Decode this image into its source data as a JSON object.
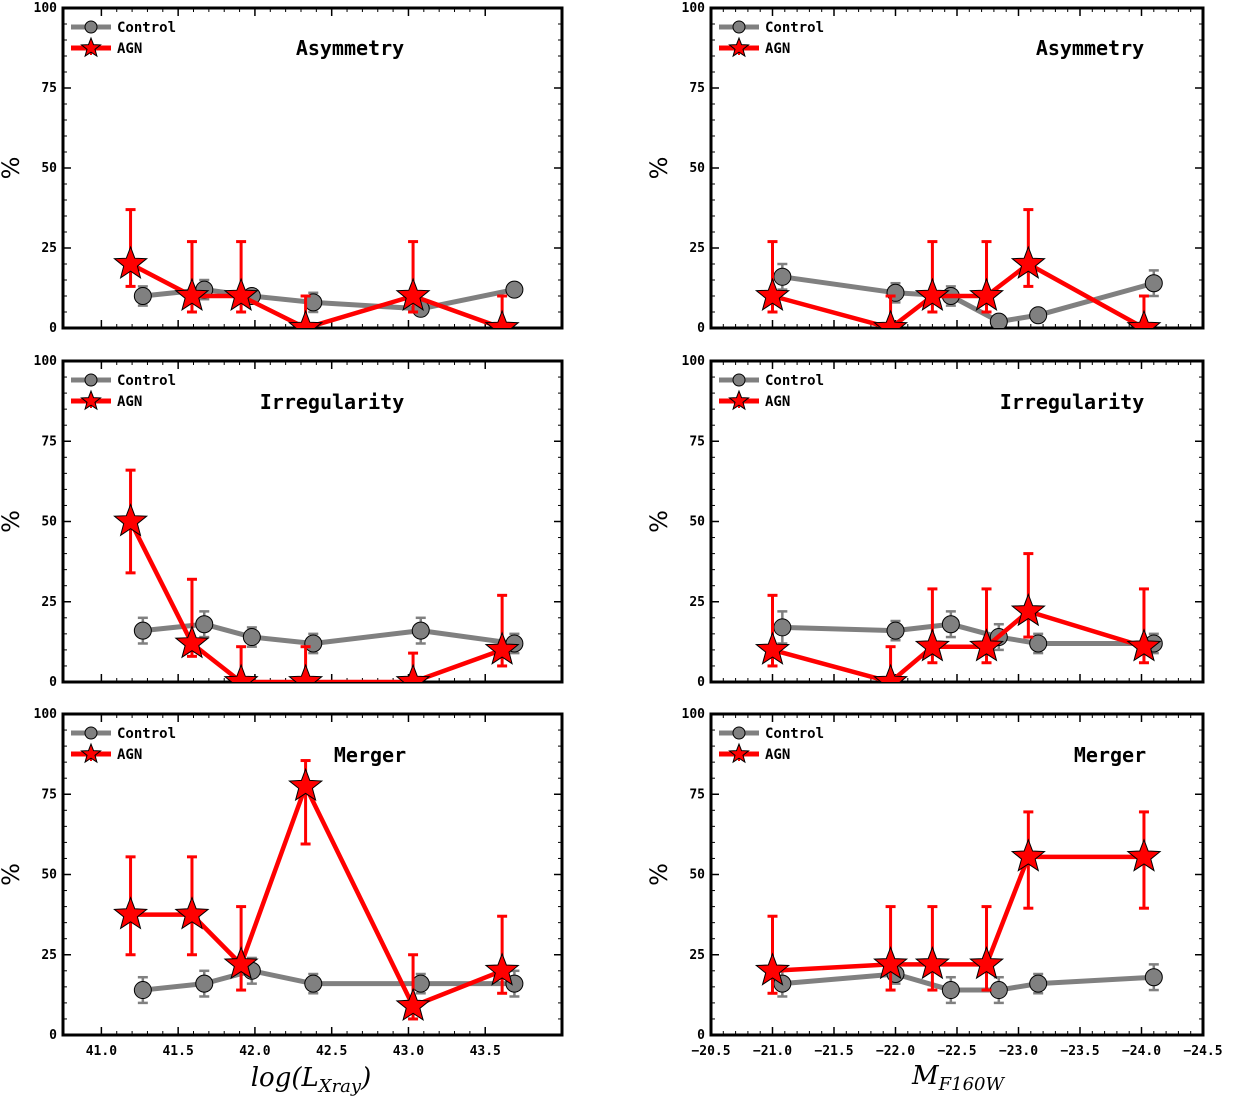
{
  "figure": {
    "colors": {
      "control": "#808080",
      "agn": "#ff0000",
      "marker_edge": "#000000"
    },
    "legend": {
      "placement": "top-left",
      "control_label": "Control",
      "agn_label": "AGN"
    },
    "ylabel": "%",
    "xlabels": {
      "left": {
        "main": "log(L",
        "sub": "Xray",
        "close": ")"
      },
      "right": {
        "main": "M",
        "sub": "F160W"
      }
    }
  },
  "chart_data": [
    {
      "type": "line",
      "title": "Asymmetry",
      "panel": "top-left",
      "xlim": [
        40.75,
        44.0
      ],
      "ylim": [
        0,
        100
      ],
      "xticks": [
        41.0,
        41.5,
        42.0,
        42.5,
        43.0,
        43.5
      ],
      "yticks": [
        0,
        25,
        50,
        75,
        100
      ],
      "xtick_labels": [
        "41.0",
        "41.5",
        "42.0",
        "42.5",
        "43.0",
        "43.5"
      ],
      "show_xticklabels": false,
      "ytick_labels": [
        "0",
        "25",
        "50",
        "75",
        "100"
      ],
      "series": [
        {
          "name": "Control",
          "x": [
            41.27,
            41.67,
            41.98,
            42.38,
            43.08,
            43.69
          ],
          "y": [
            10,
            12,
            10,
            8,
            6,
            12
          ],
          "err": [
            3,
            3,
            2,
            3,
            2,
            2
          ]
        },
        {
          "name": "AGN",
          "x": [
            41.19,
            41.59,
            41.91,
            42.33,
            43.03,
            43.61
          ],
          "y": [
            20,
            10,
            10,
            0,
            10,
            0
          ],
          "err": [
            [
              7,
              17
            ],
            [
              5,
              17
            ],
            [
              5,
              17
            ],
            [
              0,
              10
            ],
            [
              5,
              17
            ],
            [
              0,
              10
            ]
          ]
        }
      ]
    },
    {
      "type": "line",
      "title": "Asymmetry",
      "panel": "top-right",
      "xlim": [
        -20.5,
        -24.5
      ],
      "ylim": [
        0,
        100
      ],
      "xticks": [
        -20.5,
        -21.0,
        -21.5,
        -22.0,
        -22.5,
        -23.0,
        -23.5,
        -24.0,
        -24.5
      ],
      "yticks": [
        0,
        25,
        50,
        75,
        100
      ],
      "xtick_labels": [
        "−20.5",
        "−21.0",
        "−21.5",
        "−22.0",
        "−22.5",
        "−23.0",
        "−23.5",
        "−24.0",
        "−24.5"
      ],
      "show_xticklabels": false,
      "ytick_labels": [
        "0",
        "25",
        "50",
        "75",
        "100"
      ],
      "series": [
        {
          "name": "Control",
          "x": [
            -21.08,
            -22.0,
            -22.45,
            -22.84,
            -23.16,
            -24.1
          ],
          "y": [
            16,
            11,
            10,
            2,
            4,
            14
          ],
          "err": [
            4,
            3,
            3,
            1,
            1,
            4
          ]
        },
        {
          "name": "AGN",
          "x": [
            -21.0,
            -21.96,
            -22.3,
            -22.74,
            -23.08,
            -24.02
          ],
          "y": [
            10,
            0,
            10,
            10,
            20,
            0
          ],
          "err": [
            [
              5,
              17
            ],
            [
              0,
              10
            ],
            [
              5,
              17
            ],
            [
              5,
              17
            ],
            [
              7,
              17
            ],
            [
              0,
              10
            ]
          ]
        }
      ]
    },
    {
      "type": "line",
      "title": "Irregularity",
      "panel": "middle-left",
      "xlim": [
        40.75,
        44.0
      ],
      "ylim": [
        0,
        100
      ],
      "xticks": [
        41.0,
        41.5,
        42.0,
        42.5,
        43.0,
        43.5
      ],
      "yticks": [
        0,
        25,
        50,
        75,
        100
      ],
      "xtick_labels": [
        "41.0",
        "41.5",
        "42.0",
        "42.5",
        "43.0",
        "43.5"
      ],
      "show_xticklabels": false,
      "ytick_labels": [
        "0",
        "25",
        "50",
        "75",
        "100"
      ],
      "series": [
        {
          "name": "Control",
          "x": [
            41.27,
            41.67,
            41.98,
            42.38,
            43.08,
            43.69
          ],
          "y": [
            16,
            18,
            14,
            12,
            16,
            12
          ],
          "err": [
            4,
            4,
            3,
            3,
            4,
            3
          ]
        },
        {
          "name": "AGN",
          "x": [
            41.19,
            41.59,
            41.91,
            42.33,
            43.03,
            43.61
          ],
          "y": [
            50,
            12,
            0,
            0,
            0,
            10
          ],
          "err": [
            [
              16,
              16
            ],
            [
              4,
              20
            ],
            [
              0,
              11
            ],
            [
              0,
              11
            ],
            [
              0,
              9
            ],
            [
              5,
              17
            ]
          ]
        }
      ]
    },
    {
      "type": "line",
      "title": "Irregularity",
      "panel": "middle-right",
      "xlim": [
        -20.5,
        -24.5
      ],
      "ylim": [
        0,
        100
      ],
      "xticks": [
        -20.5,
        -21.0,
        -21.5,
        -22.0,
        -22.5,
        -23.0,
        -23.5,
        -24.0,
        -24.5
      ],
      "yticks": [
        0,
        25,
        50,
        75,
        100
      ],
      "xtick_labels": [
        "−20.5",
        "−21.0",
        "−21.5",
        "−22.0",
        "−22.5",
        "−23.0",
        "−23.5",
        "−24.0",
        "−24.5"
      ],
      "show_xticklabels": false,
      "ytick_labels": [
        "0",
        "25",
        "50",
        "75",
        "100"
      ],
      "series": [
        {
          "name": "Control",
          "x": [
            -21.08,
            -22.0,
            -22.45,
            -22.84,
            -23.16,
            -24.1
          ],
          "y": [
            17,
            16,
            18,
            14,
            12,
            12
          ],
          "err": [
            5,
            3,
            4,
            4,
            3,
            3
          ]
        },
        {
          "name": "AGN",
          "x": [
            -21.0,
            -21.96,
            -22.3,
            -22.74,
            -23.08,
            -24.02
          ],
          "y": [
            10,
            0,
            11,
            11,
            22,
            11
          ],
          "err": [
            [
              5,
              17
            ],
            [
              0,
              11
            ],
            [
              5,
              18
            ],
            [
              5,
              18
            ],
            [
              8,
              18
            ],
            [
              5,
              18
            ]
          ]
        }
      ]
    },
    {
      "type": "line",
      "title": "Merger",
      "panel": "bottom-left",
      "xlim": [
        40.75,
        44.0
      ],
      "ylim": [
        0,
        100
      ],
      "xticks": [
        41.0,
        41.5,
        42.0,
        42.5,
        43.0,
        43.5
      ],
      "yticks": [
        0,
        25,
        50,
        75,
        100
      ],
      "xtick_labels": [
        "41.0",
        "41.5",
        "42.0",
        "42.5",
        "43.0",
        "43.5"
      ],
      "show_xticklabels": true,
      "ytick_labels": [
        "0",
        "25",
        "50",
        "75",
        "100"
      ],
      "series": [
        {
          "name": "Control",
          "x": [
            41.27,
            41.67,
            41.98,
            42.38,
            43.08,
            43.69
          ],
          "y": [
            14,
            16,
            20,
            16,
            16,
            16
          ],
          "err": [
            4,
            4,
            4,
            3,
            3,
            4
          ]
        },
        {
          "name": "AGN",
          "x": [
            41.19,
            41.59,
            41.91,
            42.33,
            43.03,
            43.61
          ],
          "y": [
            37.5,
            37.5,
            22,
            77.5,
            9,
            20
          ],
          "err": [
            [
              12.5,
              18
            ],
            [
              12.5,
              18
            ],
            [
              8,
              18
            ],
            [
              18,
              8
            ],
            [
              4,
              16
            ],
            [
              7,
              17
            ]
          ]
        }
      ]
    },
    {
      "type": "line",
      "title": "Merger",
      "panel": "bottom-right",
      "xlim": [
        -20.5,
        -24.5
      ],
      "ylim": [
        0,
        100
      ],
      "xticks": [
        -20.5,
        -21.0,
        -21.5,
        -22.0,
        -22.5,
        -23.0,
        -23.5,
        -24.0,
        -24.5
      ],
      "yticks": [
        0,
        25,
        50,
        75,
        100
      ],
      "xtick_labels": [
        "−20.5",
        "−21.0",
        "−21.5",
        "−22.0",
        "−22.5",
        "−23.0",
        "−23.5",
        "−24.0",
        "−24.5"
      ],
      "show_xticklabels": true,
      "ytick_labels": [
        "0",
        "25",
        "50",
        "75",
        "100"
      ],
      "series": [
        {
          "name": "Control",
          "x": [
            -21.08,
            -22.0,
            -22.45,
            -22.84,
            -23.16,
            -24.1
          ],
          "y": [
            16,
            19,
            14,
            14,
            16,
            18
          ],
          "err": [
            4,
            3,
            4,
            4,
            3,
            4
          ]
        },
        {
          "name": "AGN",
          "x": [
            -21.0,
            -21.96,
            -22.3,
            -22.74,
            -23.08,
            -24.02
          ],
          "y": [
            20,
            22,
            22,
            22,
            55.5,
            55.5
          ],
          "err": [
            [
              7,
              17
            ],
            [
              8,
              18
            ],
            [
              8,
              18
            ],
            [
              8,
              18
            ],
            [
              16,
              14
            ],
            [
              16,
              14
            ]
          ]
        }
      ]
    }
  ]
}
